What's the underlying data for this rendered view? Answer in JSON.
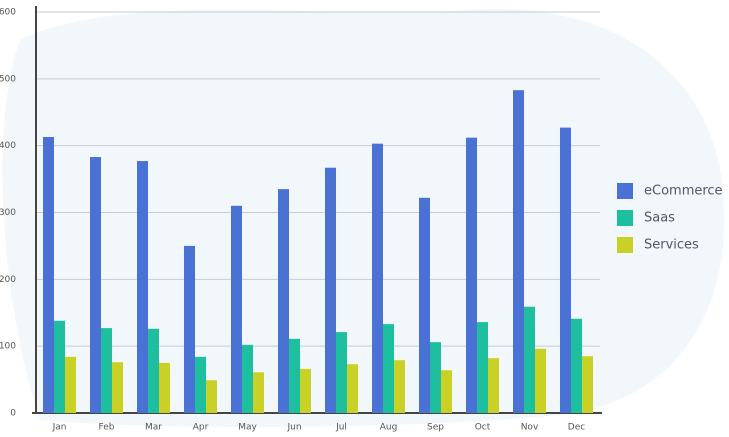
{
  "chart_data": {
    "type": "bar",
    "categories": [
      "Jan",
      "Feb",
      "Mar",
      "Apr",
      "May",
      "Jun",
      "Jul",
      "Aug",
      "Sep",
      "Oct",
      "Nov",
      "Dec"
    ],
    "series": [
      {
        "name": "eCommerce",
        "color": "#4a72d4",
        "values": [
          413,
          383,
          377,
          250,
          310,
          335,
          367,
          403,
          322,
          412,
          483,
          427
        ]
      },
      {
        "name": "Saas",
        "color": "#1dbf9f",
        "values": [
          138,
          127,
          126,
          84,
          102,
          111,
          121,
          133,
          106,
          136,
          159,
          141
        ]
      },
      {
        "name": "Services",
        "color": "#c9d126",
        "values": [
          84,
          76,
          75,
          49,
          61,
          66,
          73,
          79,
          64,
          82,
          96,
          85
        ]
      }
    ],
    "ylim": [
      0,
      600
    ],
    "yticks": [
      0,
      100,
      200,
      300,
      400,
      500,
      600
    ],
    "grid": true,
    "legend": "right"
  }
}
